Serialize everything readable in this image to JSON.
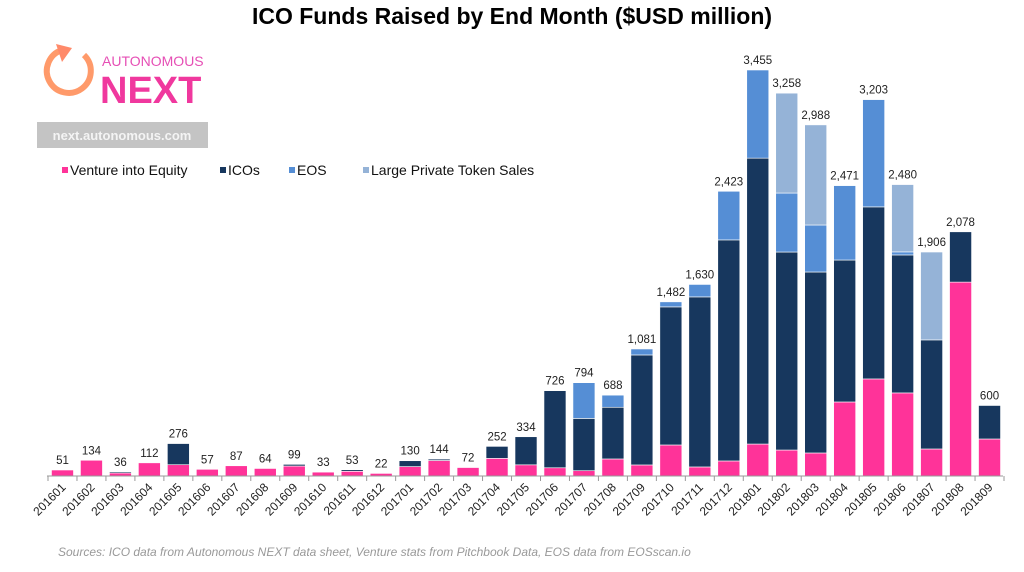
{
  "chart_data": {
    "type": "bar",
    "stacked": true,
    "title": "ICO Funds Raised by End Month ($USD million)",
    "xlabel": "",
    "ylabel": "",
    "ylim": [
      0,
      3600
    ],
    "grid": false,
    "legend_position": "top-left",
    "categories": [
      "201601",
      "201602",
      "201603",
      "201604",
      "201605",
      "201606",
      "201607",
      "201608",
      "201609",
      "201610",
      "201611",
      "201612",
      "201701",
      "201702",
      "201703",
      "201704",
      "201705",
      "201706",
      "201707",
      "201708",
      "201709",
      "201710",
      "201711",
      "201712",
      "201801",
      "201802",
      "201803",
      "201804",
      "201805",
      "201806",
      "201807",
      "201808",
      "201809"
    ],
    "totals": [
      51,
      134,
      36,
      112,
      276,
      57,
      87,
      64,
      99,
      33,
      53,
      22,
      130,
      144,
      72,
      252,
      334,
      726,
      794,
      688,
      1081,
      1482,
      1630,
      2423,
      3455,
      3258,
      2988,
      2471,
      3203,
      2480,
      1906,
      2078,
      600
    ],
    "total_labels": [
      "51",
      "134",
      "36",
      "112",
      "276",
      "57",
      "87",
      "64",
      "99",
      "33",
      "53",
      "22",
      "130",
      "144",
      "72",
      "252",
      "334",
      "726",
      "794",
      "688",
      "1,081",
      "1,482",
      "1,630",
      "2,423",
      "3,455",
      "3,258",
      "2,988",
      "2,471",
      "3,203",
      "2,480",
      "1,906",
      "2,078",
      "600"
    ],
    "series": [
      {
        "name": "Venture into Equity",
        "color": "#ff3399",
        "values": [
          51,
          134,
          26,
          112,
          96,
          57,
          87,
          64,
          85,
          33,
          40,
          22,
          80,
          132,
          72,
          150,
          95,
          70,
          45,
          145,
          94,
          264,
          77,
          128,
          272,
          221,
          196,
          630,
          826,
          707,
          230,
          1650,
          315
        ]
      },
      {
        "name": "ICOs",
        "color": "#17375e",
        "values": [
          0,
          0,
          10,
          0,
          180,
          0,
          0,
          0,
          14,
          0,
          13,
          0,
          50,
          12,
          0,
          102,
          239,
          656,
          445,
          440,
          936,
          1175,
          1447,
          1881,
          2433,
          1685,
          1540,
          1208,
          1464,
          1174,
          928,
          428,
          285
        ]
      },
      {
        "name": "EOS",
        "color": "#558ed5",
        "values": [
          0,
          0,
          0,
          0,
          0,
          0,
          0,
          0,
          0,
          0,
          0,
          0,
          0,
          0,
          0,
          0,
          0,
          0,
          304,
          103,
          51,
          43,
          106,
          414,
          750,
          502,
          400,
          633,
          913,
          26,
          0,
          0,
          0
        ]
      },
      {
        "name": "Large Private Token Sales",
        "color": "#95b3d7",
        "values": [
          0,
          0,
          0,
          0,
          0,
          0,
          0,
          0,
          0,
          0,
          0,
          0,
          0,
          0,
          0,
          0,
          0,
          0,
          0,
          0,
          0,
          0,
          0,
          0,
          0,
          850,
          852,
          0,
          0,
          573,
          748,
          0,
          0
        ]
      }
    ]
  },
  "logo": {
    "top": "AUTONOMOUS",
    "main": "NEXT",
    "url": "next.autonomous.com"
  },
  "source": "Sources: ICO data from Autonomous NEXT data sheet, Venture stats from Pitchbook Data, EOS data from EOSscan.io"
}
